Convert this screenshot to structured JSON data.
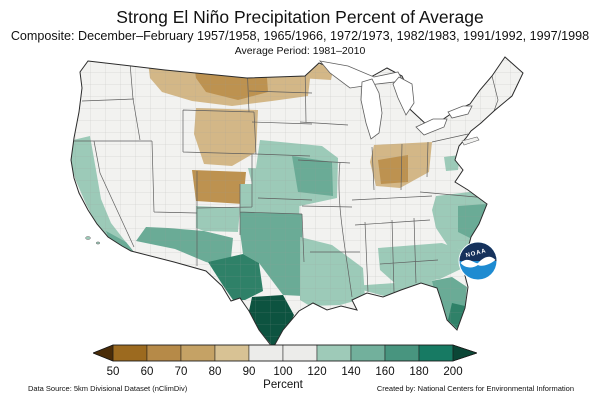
{
  "header": {
    "title": "Strong El Niño Precipitation Percent of Average",
    "subtitle": "Composite: December–February 1957/1958, 1965/1966, 1972/1973, 1982/1983, 1991/1992, 1997/1998",
    "average_period": "Average Period: 1981–2010"
  },
  "legend": {
    "label": "Percent",
    "ticks": [
      "50",
      "60",
      "70",
      "80",
      "90",
      "100",
      "120",
      "140",
      "160",
      "180",
      "200"
    ],
    "segment_colors": [
      "#9c6a1f",
      "#b68a48",
      "#c5a265",
      "#d8c294",
      "#ececea",
      "#ececea",
      "#9ecab8",
      "#72b09c",
      "#48957f",
      "#177a63"
    ],
    "left_arrow_color": "#4a2c08",
    "right_arrow_color": "#0b4636"
  },
  "footer": {
    "data_source": "Data Source: 5km Divisional Dataset (nClimDiv)",
    "created_by": "Created by: National Centers for Environmental Information"
  },
  "noaa": {
    "text": "NOAA",
    "dark_blue": "#16325c",
    "light_blue": "#1e8bd1"
  },
  "map": {
    "palette": {
      "neutral": "#f2f2f0",
      "tan_light": "#d3b787",
      "tan_mid": "#bd9250",
      "tan_dark": "#ab7c2e",
      "teal_light": "#9ccab8",
      "teal_mid": "#6aab96",
      "teal_dark": "#2f8168",
      "teal_xdark": "#0d5340",
      "county_line": "#9a9a9a",
      "state_line": "#5f5f5f",
      "outline": "#2b2b2b",
      "lake_fill": "#ffffff",
      "noaa_dark": "#16325c",
      "noaa_light": "#1e8bd1"
    },
    "regions": [
      {
        "area": "Pacific Northwest and interior Northwest",
        "value": "near normal (90–120%)"
      },
      {
        "area": "Montana, Wyoming, North Dakota, northern Minnesota",
        "value": "below average (60–90%)"
      },
      {
        "area": "Southeastern Utah / western Colorado",
        "value": "below average (70–90%)"
      },
      {
        "area": "Indiana and western Ohio",
        "value": "below average (70–90%)"
      },
      {
        "area": "California coast",
        "value": "above average (120–140%)"
      },
      {
        "area": "Southern Arizona and New Mexico",
        "value": "above average (140–160%)"
      },
      {
        "area": "West Texas",
        "value": "above average (160–180%)"
      },
      {
        "area": "South Texas",
        "value": "well above average (200%+)"
      },
      {
        "area": "Gulf Coast from Louisiana to Florida panhandle",
        "value": "above average (120–140%)"
      },
      {
        "area": "Florida peninsula",
        "value": "above average (140–180%)"
      },
      {
        "area": "Georgia / Carolinas coast",
        "value": "above average (120–140%)"
      },
      {
        "area": "Nebraska, Iowa, Missouri, Kansas patches",
        "value": "above average (120–160%)"
      },
      {
        "area": "Northeast, Great Lakes, Tennessee valley",
        "value": "near normal (90–120%)"
      }
    ]
  }
}
